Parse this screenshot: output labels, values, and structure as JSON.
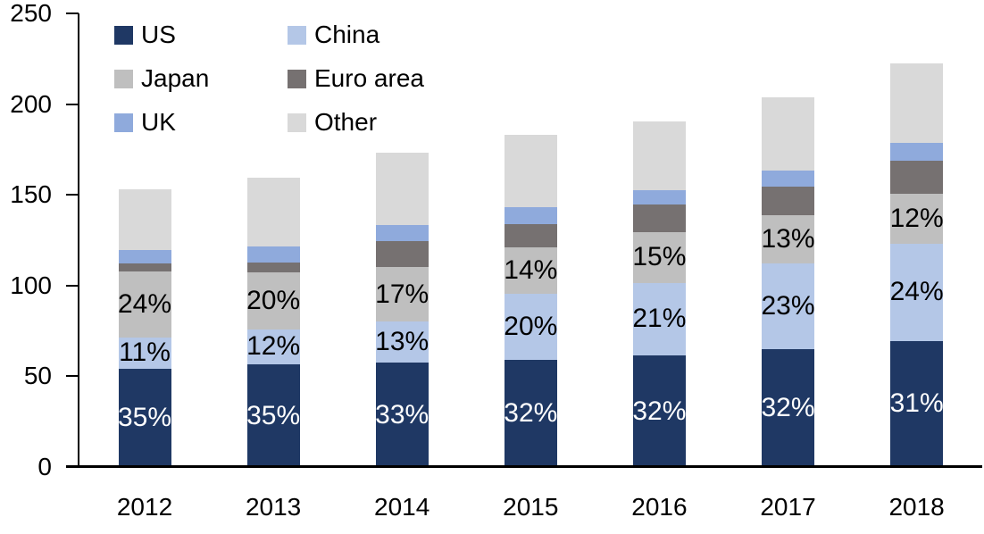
{
  "chart_data": {
    "type": "bar",
    "stacked": true,
    "title": "",
    "xlabel": "",
    "ylabel": "",
    "ylim": [
      0,
      250
    ],
    "yticks": [
      0,
      50,
      100,
      150,
      200,
      250
    ],
    "grid": false,
    "legend_position": "top-left",
    "legend_columns": 2,
    "categories": [
      "2012",
      "2013",
      "2014",
      "2015",
      "2016",
      "2017",
      "2018"
    ],
    "totals": [
      153,
      159.5,
      173,
      183,
      190.5,
      203.5,
      222.5
    ],
    "series": [
      {
        "name": "US",
        "color": "#1F3864",
        "values": [
          54,
          56.5,
          57.5,
          59,
          61.5,
          65,
          69.5
        ],
        "labels": [
          "35%",
          "35%",
          "33%",
          "32%",
          "32%",
          "32%",
          "31%"
        ],
        "label_color": "#FFFFFF"
      },
      {
        "name": "China",
        "color": "#B4C7E7",
        "values": [
          17.5,
          19.5,
          22.5,
          36.5,
          40,
          47,
          53.5
        ],
        "labels": [
          "11%",
          "12%",
          "13%",
          "20%",
          "21%",
          "23%",
          "24%"
        ],
        "label_color": "#000000"
      },
      {
        "name": "Japan",
        "color": "#BFBFBF",
        "values": [
          36.5,
          31.5,
          30,
          25.5,
          28,
          27,
          27.5
        ],
        "labels": [
          "24%",
          "20%",
          "17%",
          "14%",
          "15%",
          "13%",
          "12%"
        ],
        "label_color": "#000000"
      },
      {
        "name": "Euro area",
        "color": "#767171",
        "values": [
          4,
          5,
          14.5,
          13,
          15,
          15.5,
          18.5
        ],
        "labels": null,
        "label_color": null
      },
      {
        "name": "UK",
        "color": "#8FAADC",
        "values": [
          7.5,
          9,
          9,
          9,
          8,
          9,
          9.5
        ],
        "labels": null,
        "label_color": null
      },
      {
        "name": "Other",
        "color": "#D9D9D9",
        "values": [
          33.5,
          38,
          39.5,
          40,
          38,
          40,
          44
        ],
        "labels": null,
        "label_color": null
      }
    ],
    "axis_color": "#000000",
    "text_color": "#000000"
  }
}
